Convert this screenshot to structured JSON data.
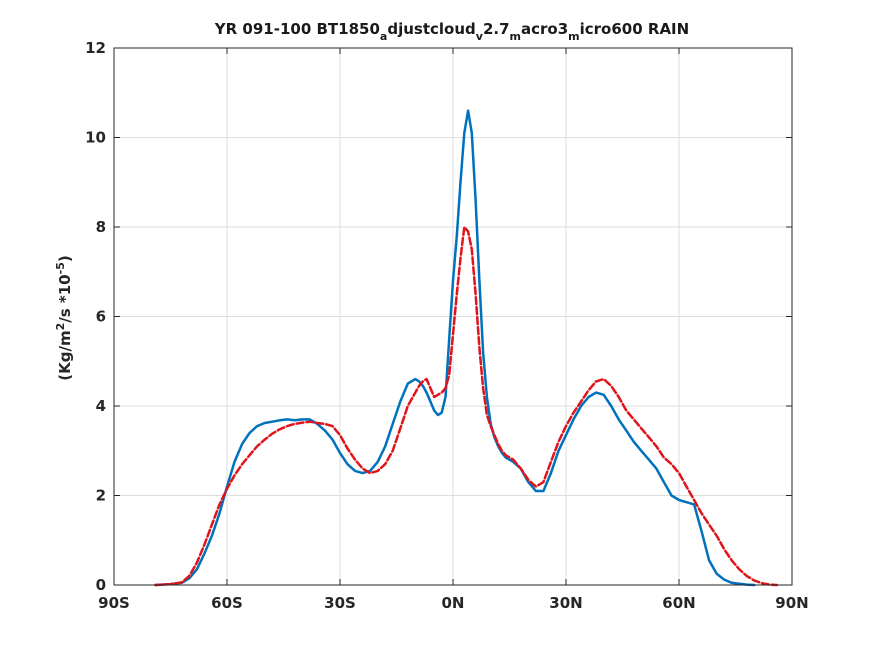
{
  "chart_data": {
    "type": "line",
    "title_parts": [
      "YR 091-100 BT1850",
      "a",
      "djustcloud",
      "v",
      "2.7",
      "m",
      "acro3",
      "m",
      "icro600 RAIN"
    ],
    "ylabel_parts": [
      "(Kg/m",
      "2",
      "/s   *10",
      "-5",
      ")"
    ],
    "xlabel": "",
    "xlim": [
      -90,
      90
    ],
    "ylim": [
      0,
      12
    ],
    "xticks": [
      -90,
      -60,
      -30,
      0,
      30,
      60,
      90
    ],
    "xtick_labels": [
      "90S",
      "60S",
      "30S",
      "0N",
      "30N",
      "60N",
      "90N"
    ],
    "yticks": [
      0,
      2,
      4,
      6,
      8,
      10,
      12
    ],
    "ytick_labels": [
      "0",
      "2",
      "4",
      "6",
      "8",
      "10",
      "12"
    ],
    "grid": true,
    "legend": "none",
    "series": [
      {
        "color": "#0072BD",
        "style": "solid",
        "x": [
          -79,
          -75,
          -72,
          -70,
          -68,
          -66,
          -64,
          -62,
          -60,
          -58,
          -56,
          -54,
          -52,
          -50,
          -48,
          -46,
          -44,
          -42,
          -40,
          -38,
          -36,
          -34,
          -32,
          -30,
          -28,
          -26,
          -24,
          -22,
          -20,
          -18,
          -16,
          -14,
          -12,
          -10,
          -9,
          -8,
          -7,
          -6,
          -5,
          -4,
          -3,
          -2,
          -1,
          0,
          1,
          2,
          3,
          4,
          5,
          6,
          7,
          8,
          9,
          10,
          11,
          12,
          13,
          14,
          16,
          18,
          20,
          22,
          24,
          26,
          28,
          30,
          32,
          34,
          36,
          38,
          40,
          42,
          44,
          46,
          48,
          50,
          52,
          54,
          56,
          58,
          60,
          62,
          64,
          66,
          68,
          70,
          72,
          74,
          76,
          78,
          80
        ],
        "values": [
          0,
          0.02,
          0.05,
          0.15,
          0.35,
          0.7,
          1.1,
          1.6,
          2.2,
          2.75,
          3.15,
          3.4,
          3.55,
          3.62,
          3.65,
          3.68,
          3.7,
          3.68,
          3.7,
          3.7,
          3.6,
          3.45,
          3.25,
          2.95,
          2.7,
          2.55,
          2.5,
          2.55,
          2.75,
          3.1,
          3.6,
          4.1,
          4.5,
          4.6,
          4.55,
          4.45,
          4.3,
          4.1,
          3.9,
          3.8,
          3.85,
          4.2,
          5.5,
          6.8,
          7.8,
          9.0,
          10.1,
          10.6,
          10.1,
          8.6,
          6.8,
          5.2,
          4.2,
          3.6,
          3.3,
          3.1,
          2.95,
          2.85,
          2.75,
          2.6,
          2.3,
          2.1,
          2.1,
          2.5,
          3.0,
          3.35,
          3.7,
          4.0,
          4.2,
          4.3,
          4.25,
          4.0,
          3.7,
          3.45,
          3.2,
          3.0,
          2.8,
          2.6,
          2.3,
          2.0,
          1.9,
          1.85,
          1.8,
          1.2,
          0.55,
          0.25,
          0.12,
          0.05,
          0.03,
          0.01,
          0
        ]
      },
      {
        "color": "#E0141A",
        "style": "dashed",
        "x": [
          -79,
          -75,
          -72,
          -70,
          -68,
          -66,
          -64,
          -62,
          -60,
          -58,
          -56,
          -54,
          -52,
          -50,
          -48,
          -46,
          -44,
          -42,
          -40,
          -38,
          -36,
          -34,
          -32,
          -30,
          -28,
          -26,
          -24,
          -22,
          -20,
          -18,
          -16,
          -14,
          -12,
          -10,
          -9,
          -8,
          -7,
          -6,
          -5,
          -4,
          -3,
          -2,
          -1,
          0,
          1,
          2,
          3,
          4,
          5,
          6,
          7,
          8,
          9,
          10,
          11,
          12,
          13,
          14,
          16,
          18,
          20,
          22,
          24,
          26,
          28,
          30,
          32,
          34,
          36,
          38,
          40,
          42,
          44,
          46,
          48,
          50,
          52,
          54,
          56,
          58,
          60,
          62,
          64,
          66,
          68,
          70,
          72,
          74,
          76,
          78,
          80,
          82,
          84,
          86
        ],
        "values": [
          0,
          0.02,
          0.06,
          0.2,
          0.5,
          0.9,
          1.35,
          1.8,
          2.15,
          2.45,
          2.7,
          2.9,
          3.1,
          3.25,
          3.38,
          3.48,
          3.55,
          3.6,
          3.63,
          3.65,
          3.62,
          3.6,
          3.55,
          3.35,
          3.05,
          2.8,
          2.6,
          2.5,
          2.55,
          2.7,
          3.0,
          3.5,
          4.0,
          4.3,
          4.45,
          4.55,
          4.6,
          4.4,
          4.2,
          4.25,
          4.3,
          4.4,
          4.7,
          5.6,
          6.5,
          7.3,
          8.0,
          7.9,
          7.5,
          6.5,
          5.3,
          4.4,
          3.8,
          3.55,
          3.35,
          3.15,
          3.0,
          2.9,
          2.8,
          2.6,
          2.35,
          2.2,
          2.3,
          2.75,
          3.2,
          3.55,
          3.85,
          4.1,
          4.35,
          4.55,
          4.6,
          4.45,
          4.2,
          3.9,
          3.7,
          3.5,
          3.3,
          3.1,
          2.85,
          2.7,
          2.5,
          2.2,
          1.9,
          1.6,
          1.35,
          1.1,
          0.8,
          0.55,
          0.35,
          0.2,
          0.1,
          0.04,
          0.01,
          0
        ]
      }
    ]
  }
}
